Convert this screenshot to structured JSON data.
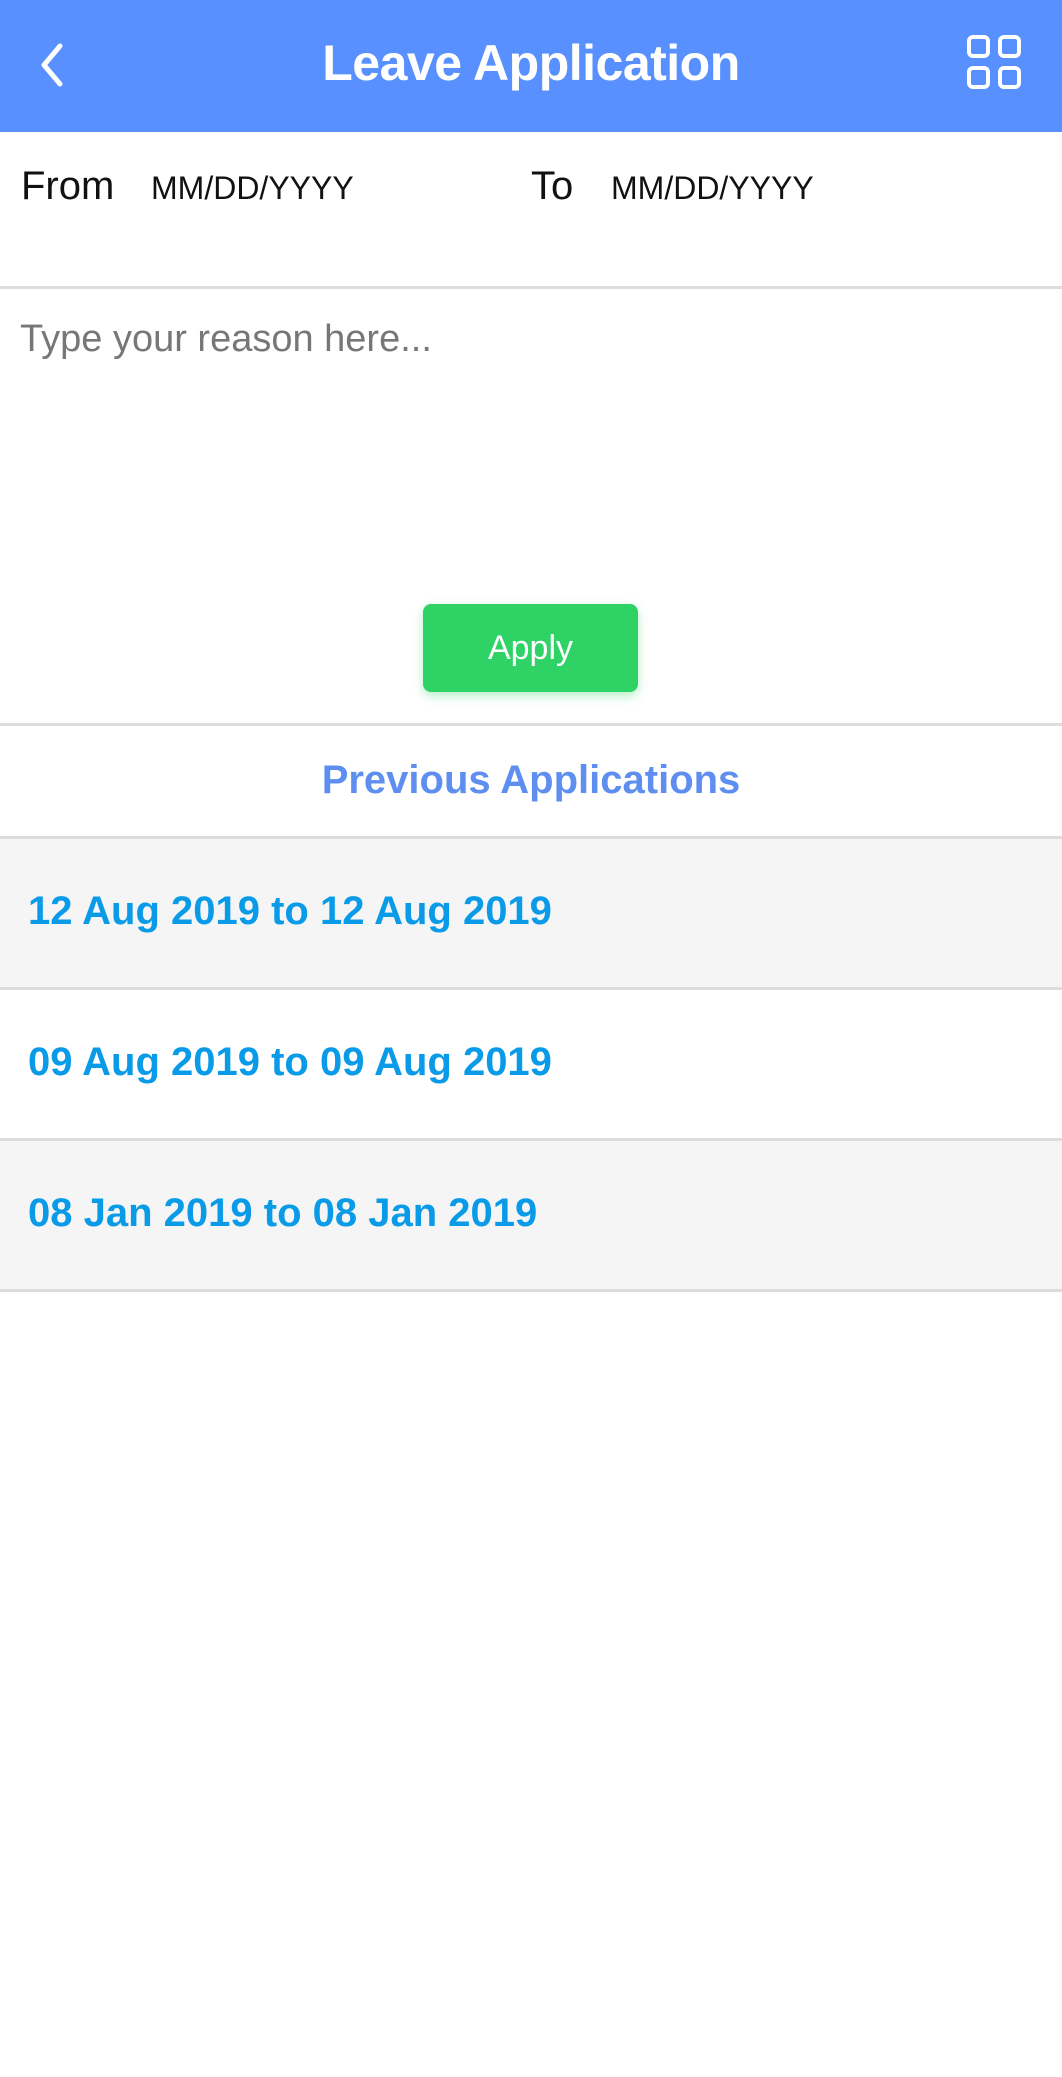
{
  "header": {
    "title": "Leave Application",
    "back_icon": "chevron-left-icon",
    "menu_icon": "grid-icon",
    "color": "#5890FF"
  },
  "dates": {
    "from_label": "From",
    "from_value": "MM/DD/YYYY",
    "to_label": "To",
    "to_value": "MM/DD/YYYY"
  },
  "reason": {
    "placeholder": "Type your reason here...",
    "value": ""
  },
  "apply": {
    "label": "Apply",
    "color": "#2ED265"
  },
  "previous": {
    "title": "Previous Applications",
    "items": [
      {
        "label": "12 Aug 2019 to 12 Aug 2019"
      },
      {
        "label": "09 Aug 2019 to 09 Aug 2019"
      },
      {
        "label": "08 Jan 2019 to 08 Jan 2019"
      }
    ]
  }
}
